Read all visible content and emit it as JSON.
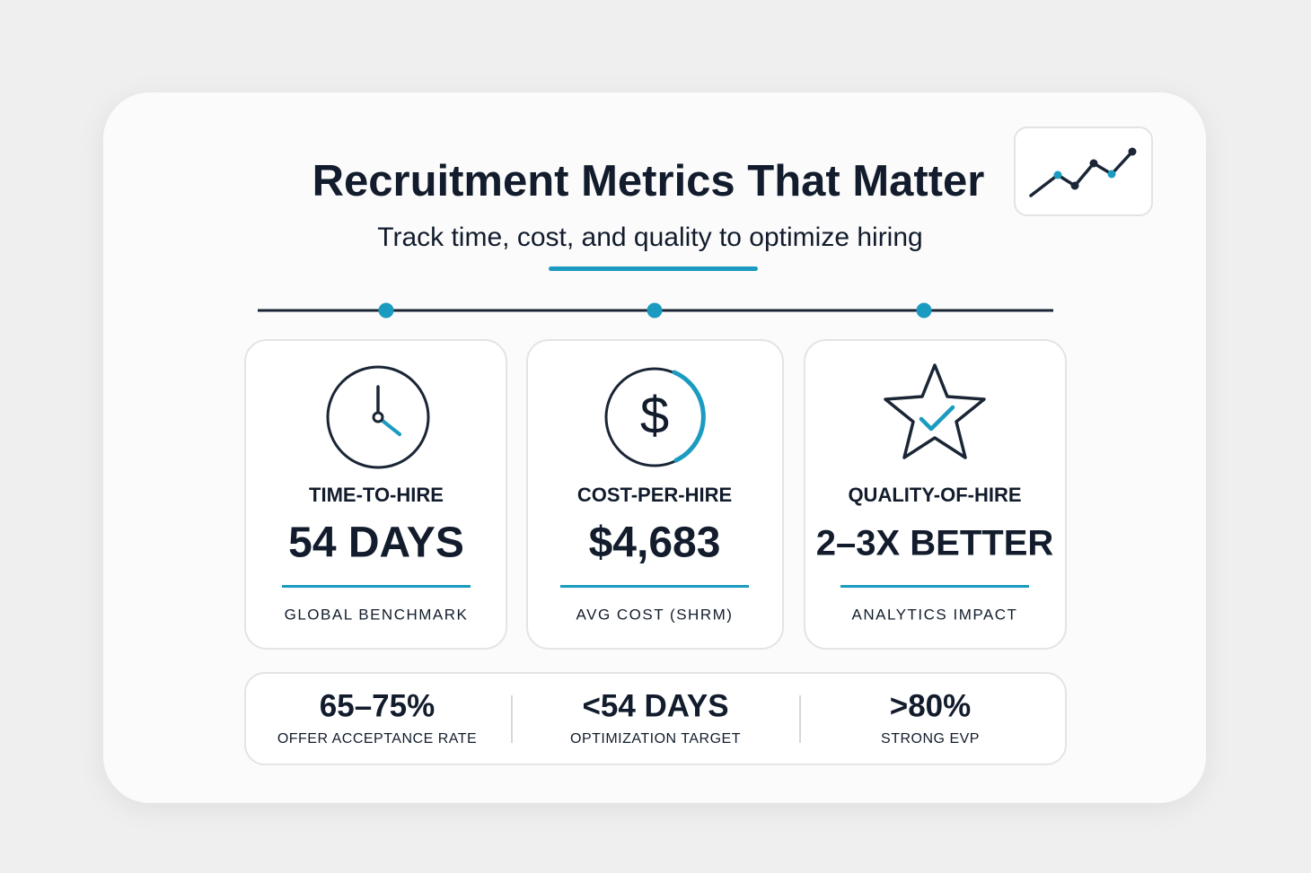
{
  "header": {
    "title": "Recruitment Metrics That Matter",
    "subtitle": "Track time, cost, and quality to optimize hiring"
  },
  "cards": [
    {
      "label": "TIME-TO-HIRE",
      "value": "54 DAYS",
      "note": "GLOBAL BENCHMARK"
    },
    {
      "label": "COST-PER-HIRE",
      "value": "$4,683",
      "note": "AVG COST (SHRM)"
    },
    {
      "label": "QUALITY-OF-HIRE",
      "value": "2–3X BETTER",
      "note": "ANALYTICS IMPACT"
    }
  ],
  "stats": [
    {
      "value": "65–75%",
      "label": "OFFER ACCEPTANCE RATE"
    },
    {
      "value": "<54 DAYS",
      "label": "OPTIMIZATION TARGET"
    },
    {
      "value": ">80%",
      "label": "STRONG EVP"
    }
  ]
}
